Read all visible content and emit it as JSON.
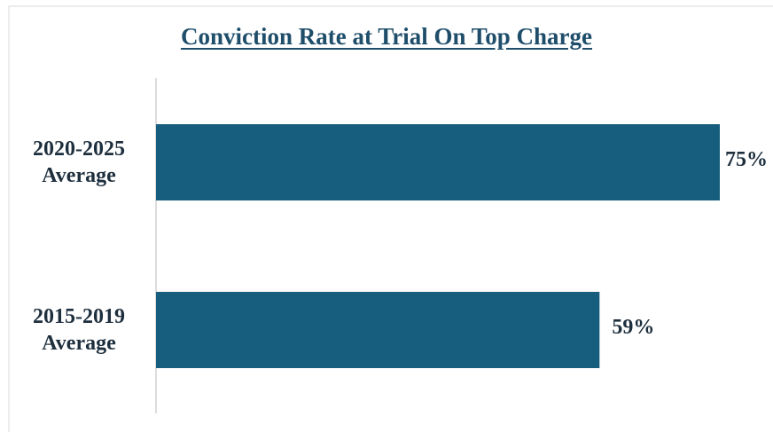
{
  "chart_data": {
    "type": "barh",
    "title": "Conviction Rate at Trial On Top Charge",
    "categories": [
      "2020-2025 Average",
      "2015-2019 Average"
    ],
    "values": [
      75,
      59
    ],
    "value_labels": [
      "75%",
      "59%"
    ],
    "color": "#175e7e"
  }
}
